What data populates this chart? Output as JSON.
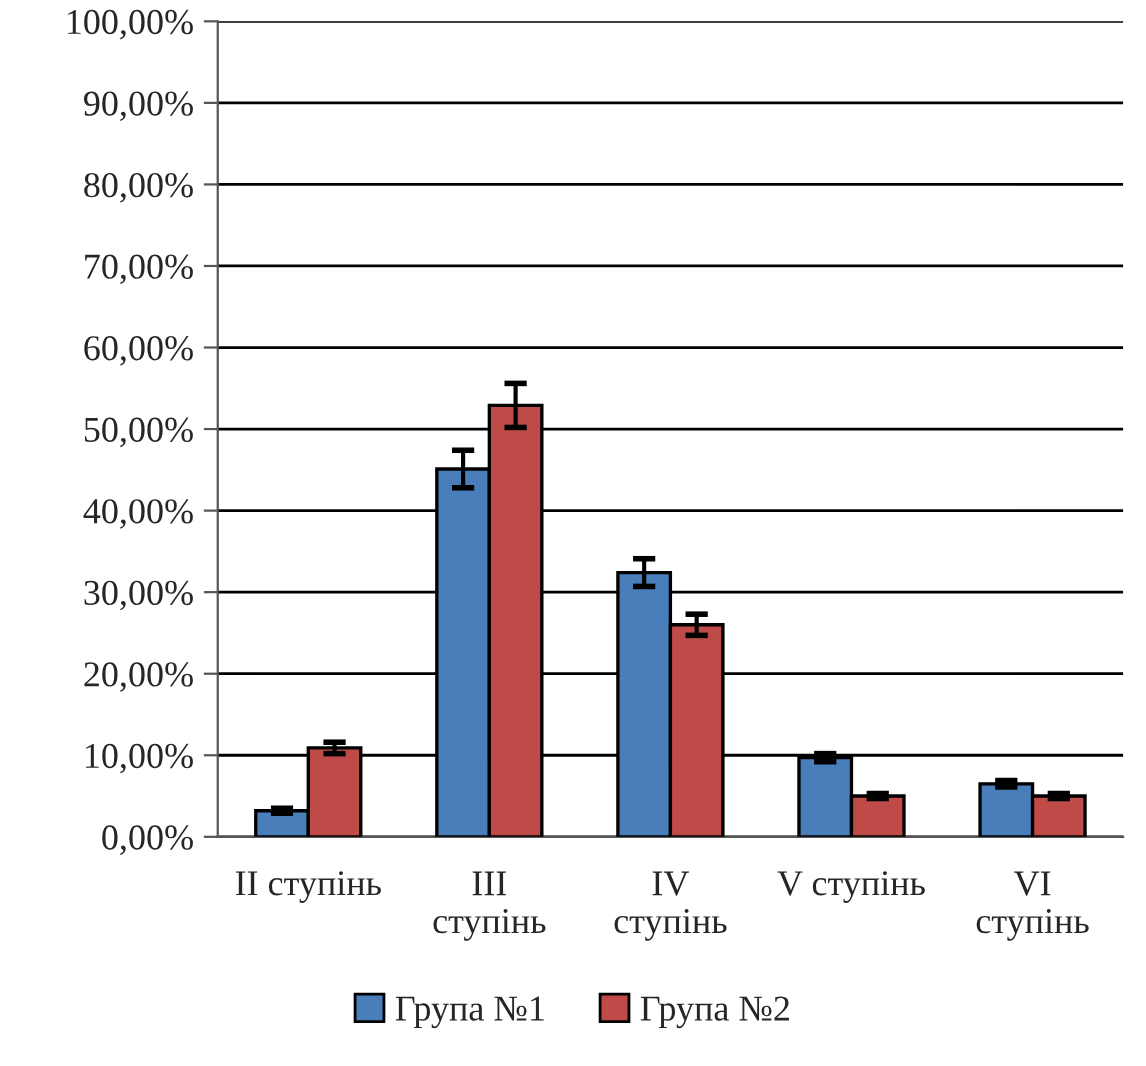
{
  "chart_data": {
    "type": "bar",
    "categories": [
      "II ступінь",
      "III\nступінь",
      "IV\nступінь",
      "V ступінь",
      "VI\nступінь"
    ],
    "series": [
      {
        "name": "Група №1",
        "color": "#4a7ebb",
        "values": [
          3.2,
          45.1,
          32.4,
          9.7,
          6.5
        ],
        "errors": [
          0.3,
          2.3,
          1.7,
          0.5,
          0.4
        ]
      },
      {
        "name": "Група №2",
        "color": "#be4b48",
        "values": [
          10.9,
          52.9,
          26.0,
          5.0,
          5.0
        ],
        "errors": [
          0.7,
          2.7,
          1.3,
          0.3,
          0.3
        ]
      }
    ],
    "ylim": [
      0,
      100
    ],
    "yticks": [
      {
        "value": 0,
        "label": "0,00%"
      },
      {
        "value": 10,
        "label": "10,00%"
      },
      {
        "value": 20,
        "label": "20,00%"
      },
      {
        "value": 30,
        "label": "30,00%"
      },
      {
        "value": 40,
        "label": "40,00%"
      },
      {
        "value": 50,
        "label": "50,00%"
      },
      {
        "value": 60,
        "label": "60,00%"
      },
      {
        "value": 70,
        "label": "70,00%"
      },
      {
        "value": 80,
        "label": "80,00%"
      },
      {
        "value": 90,
        "label": "90,00%"
      },
      {
        "value": 100,
        "label": "100,00%"
      }
    ],
    "grid": "y",
    "legend": "bottom"
  }
}
